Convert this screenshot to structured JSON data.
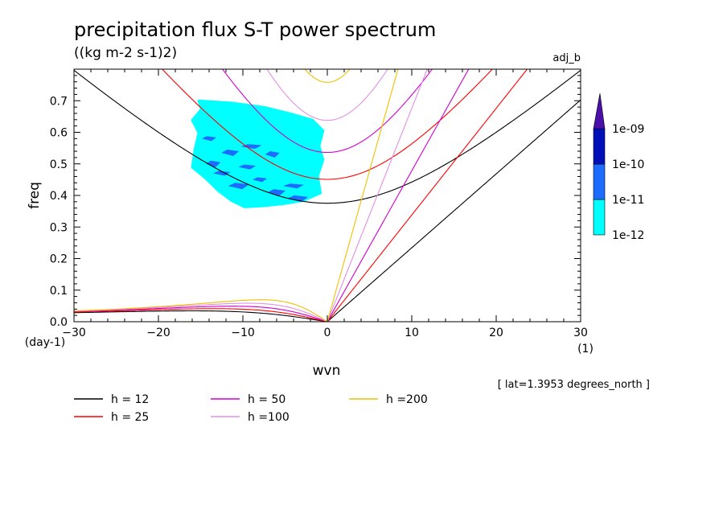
{
  "chart_data": {
    "type": "contour",
    "title": "precipitation flux S-T power spectrum",
    "subtitle": "((kg m-2 s-1)2)",
    "tag": "adj_b",
    "xlabel": "wvn",
    "ylabel": "freq",
    "x_unit": "(1)",
    "y_unit": "(day-1)",
    "note": "[ lat=1.3953 degrees_north ]",
    "xlim": [
      -30,
      30
    ],
    "ylim": [
      0,
      0.8
    ],
    "x_ticks": [
      "-30",
      "-20",
      "-10",
      "0",
      "10",
      "20",
      "30"
    ],
    "x_tick_values": [
      -30,
      -20,
      -10,
      0,
      10,
      20,
      30
    ],
    "y_ticks": [
      "0.0",
      "0.1",
      "0.2",
      "0.3",
      "0.4",
      "0.5",
      "0.6",
      "0.7"
    ],
    "y_tick_values": [
      0,
      0.1,
      0.2,
      0.3,
      0.4,
      0.5,
      0.6,
      0.7
    ],
    "colorbar": {
      "labels": [
        "1e-12",
        "1e-11",
        "1e-10",
        "1e-09"
      ],
      "colors": [
        "#00ffff",
        "#1e6cff",
        "#0010b8",
        "#4a10a8"
      ]
    },
    "dispersion_curves": [
      {
        "name": "h = 12",
        "h": 12,
        "color": "#000000"
      },
      {
        "name": "h = 25",
        "h": 25,
        "color": "#ff0000"
      },
      {
        "name": "h = 50",
        "h": 50,
        "color": "#d000d0"
      },
      {
        "name": "h =100",
        "h": 100,
        "color": "#e090e0"
      },
      {
        "name": "h =200",
        "h": 200,
        "color": "#f0c000"
      }
    ],
    "spectral_region": {
      "level": "1e-12",
      "approx_x_range": [
        -16,
        -0.5
      ],
      "approx_y_range": [
        0.36,
        0.7
      ],
      "color": "#00ffff"
    },
    "spectral_patches": [
      {
        "level": "1e-11",
        "color": "#1e6cff",
        "x": -14.0,
        "y": 0.58
      },
      {
        "level": "1e-11",
        "color": "#1e6cff",
        "x": -11.5,
        "y": 0.535
      },
      {
        "level": "1e-11",
        "color": "#1e6cff",
        "x": -9.0,
        "y": 0.555
      },
      {
        "level": "1e-11",
        "color": "#1e6cff",
        "x": -6.5,
        "y": 0.53
      },
      {
        "level": "1e-11",
        "color": "#1e6cff",
        "x": -12.5,
        "y": 0.47
      },
      {
        "level": "1e-11",
        "color": "#1e6cff",
        "x": -10.5,
        "y": 0.43
      },
      {
        "level": "1e-11",
        "color": "#1e6cff",
        "x": -8.0,
        "y": 0.45
      },
      {
        "level": "1e-11",
        "color": "#1e6cff",
        "x": -6.0,
        "y": 0.41
      },
      {
        "level": "1e-11",
        "color": "#1e6cff",
        "x": -4.0,
        "y": 0.43
      },
      {
        "level": "1e-11",
        "color": "#1e6cff",
        "x": -13.5,
        "y": 0.5
      },
      {
        "level": "1e-11",
        "color": "#1e6cff",
        "x": -9.5,
        "y": 0.49
      },
      {
        "level": "1e-11",
        "color": "#1e6cff",
        "x": -3.5,
        "y": 0.39
      }
    ]
  }
}
